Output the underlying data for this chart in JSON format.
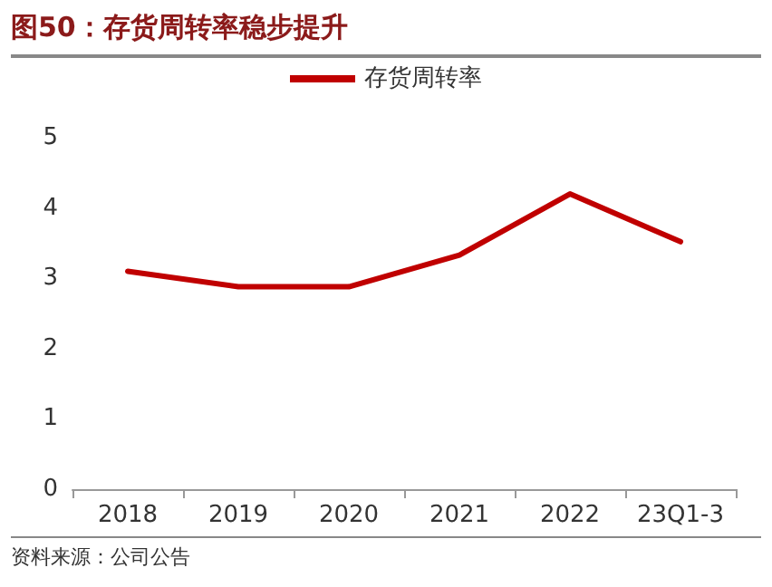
{
  "chart_data": {
    "type": "line",
    "title": "图50：存货周转率稳步提升",
    "categories": [
      "2018",
      "2019",
      "2020",
      "2021",
      "2022",
      "23Q1-3"
    ],
    "series": [
      {
        "name": "存货周转率",
        "color": "#c00000",
        "values": [
          3.1,
          2.88,
          2.88,
          3.33,
          4.2,
          3.52
        ]
      }
    ],
    "ylim": [
      0,
      5
    ],
    "yticks": [
      0,
      1,
      2,
      3,
      4,
      5
    ],
    "grid": false,
    "legend": "top",
    "marker": "none",
    "line_style": "solid",
    "annotations": [
      "资料来源：公司公告"
    ]
  }
}
